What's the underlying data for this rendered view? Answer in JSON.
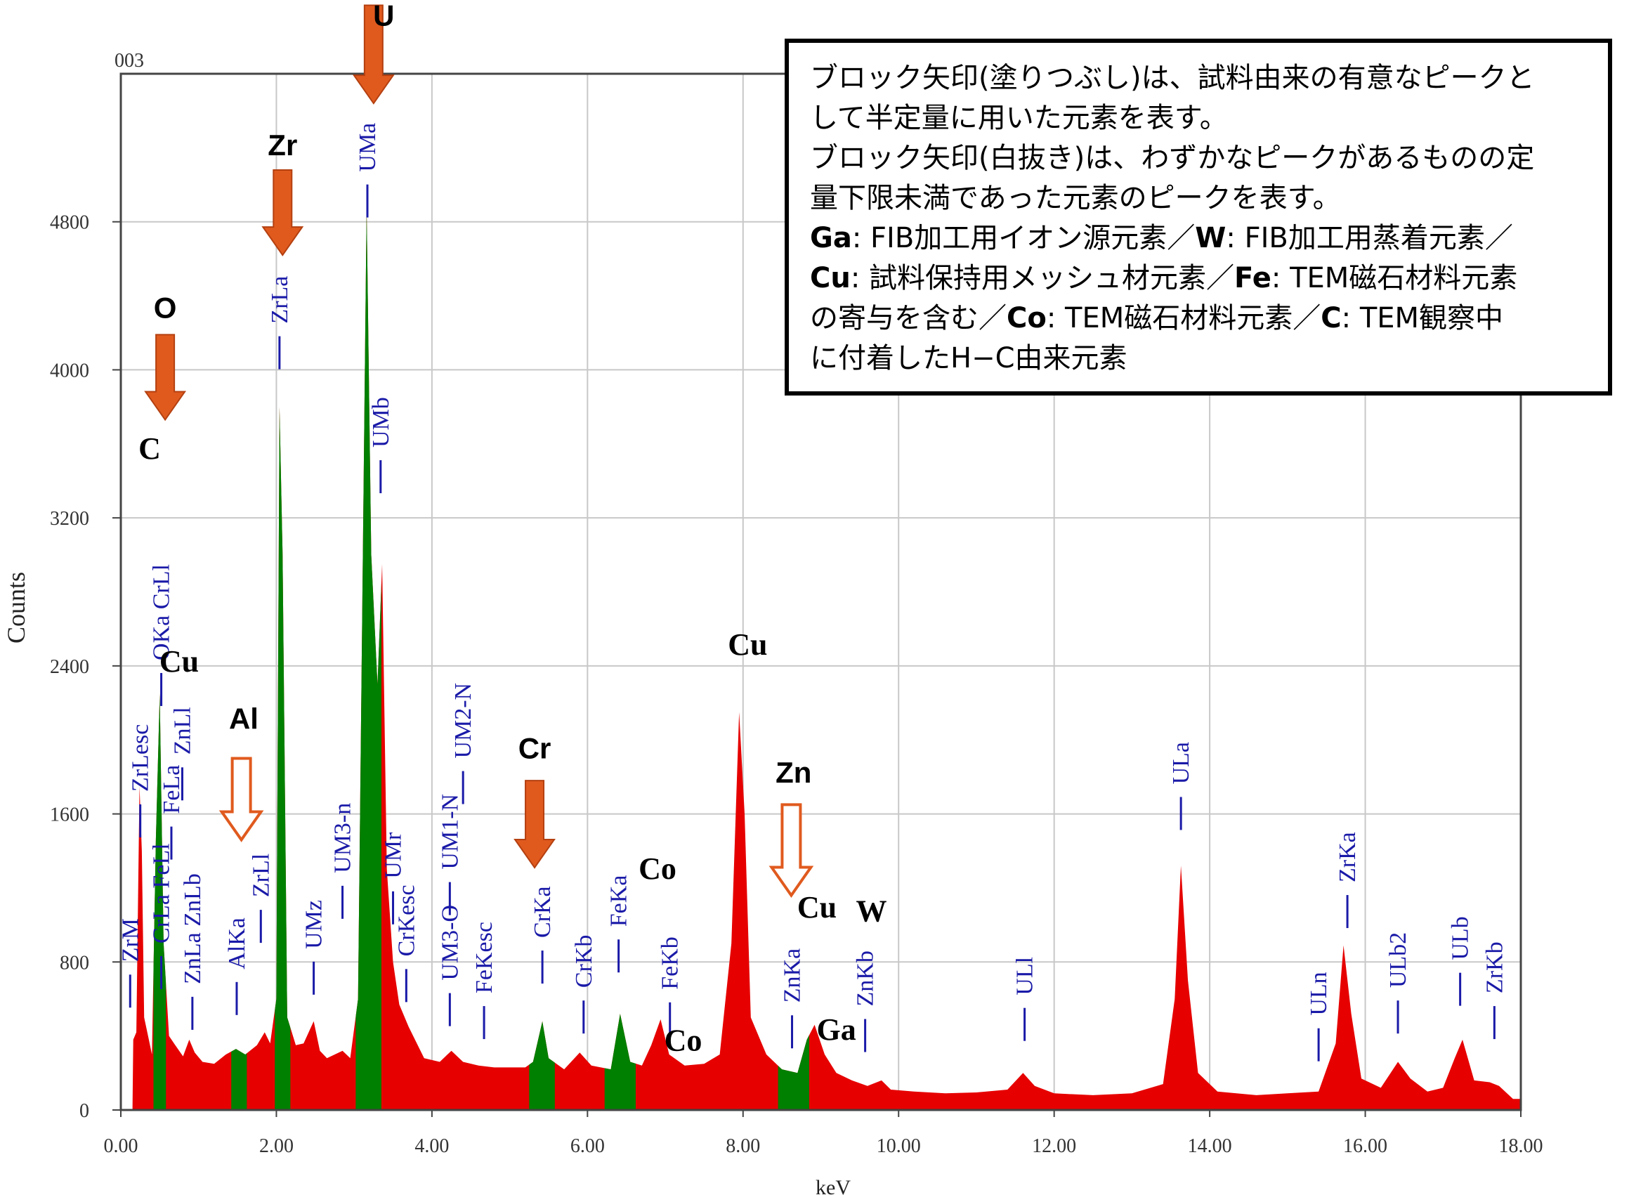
{
  "corner_label": "003",
  "chart_data": {
    "type": "area",
    "xlabel": "keV",
    "ylabel": "Counts",
    "xlim": [
      0,
      18
    ],
    "ylim": [
      0,
      5600
    ],
    "x_ticks": [
      "0.00",
      "2.00",
      "4.00",
      "6.00",
      "8.00",
      "10.00",
      "12.00",
      "14.00",
      "16.00",
      "18.00"
    ],
    "y_ticks": [
      "0",
      "800",
      "1600",
      "2400",
      "3200",
      "4000",
      "4800"
    ],
    "grid": true,
    "series": [
      {
        "color": "#e60000",
        "points": [
          [
            0.15,
            0
          ],
          [
            0.16,
            380
          ],
          [
            0.2,
            420
          ],
          [
            0.24,
            1750
          ],
          [
            0.27,
            1400
          ],
          [
            0.3,
            500
          ],
          [
            0.36,
            380
          ],
          [
            0.4,
            300
          ],
          [
            0.45,
            1450
          ],
          [
            0.5,
            2250
          ],
          [
            0.55,
            900
          ],
          [
            0.62,
            400
          ],
          [
            0.7,
            350
          ],
          [
            0.8,
            290
          ],
          [
            0.88,
            380
          ],
          [
            0.95,
            310
          ],
          [
            1.05,
            260
          ],
          [
            1.2,
            250
          ],
          [
            1.35,
            300
          ],
          [
            1.48,
            330
          ],
          [
            1.6,
            300
          ],
          [
            1.75,
            350
          ],
          [
            1.85,
            420
          ],
          [
            1.92,
            360
          ],
          [
            2.0,
            600
          ],
          [
            2.04,
            3800
          ],
          [
            2.08,
            3000
          ],
          [
            2.14,
            500
          ],
          [
            2.25,
            350
          ],
          [
            2.35,
            360
          ],
          [
            2.48,
            480
          ],
          [
            2.56,
            320
          ],
          [
            2.65,
            280
          ],
          [
            2.75,
            300
          ],
          [
            2.85,
            320
          ],
          [
            2.95,
            280
          ],
          [
            3.05,
            600
          ],
          [
            3.16,
            4880
          ],
          [
            3.22,
            3000
          ],
          [
            3.3,
            2300
          ],
          [
            3.36,
            2950
          ],
          [
            3.42,
            1300
          ],
          [
            3.5,
            800
          ],
          [
            3.58,
            570
          ],
          [
            3.7,
            450
          ],
          [
            3.9,
            280
          ],
          [
            4.1,
            260
          ],
          [
            4.25,
            320
          ],
          [
            4.4,
            260
          ],
          [
            4.6,
            240
          ],
          [
            4.8,
            230
          ],
          [
            5.0,
            230
          ],
          [
            5.2,
            230
          ],
          [
            5.3,
            260
          ],
          [
            5.42,
            480
          ],
          [
            5.5,
            280
          ],
          [
            5.7,
            220
          ],
          [
            5.9,
            310
          ],
          [
            6.05,
            240
          ],
          [
            6.3,
            220
          ],
          [
            6.42,
            520
          ],
          [
            6.55,
            260
          ],
          [
            6.7,
            240
          ],
          [
            6.82,
            350
          ],
          [
            6.94,
            490
          ],
          [
            7.05,
            300
          ],
          [
            7.25,
            240
          ],
          [
            7.5,
            250
          ],
          [
            7.7,
            300
          ],
          [
            7.85,
            900
          ],
          [
            7.95,
            2150
          ],
          [
            8.02,
            1600
          ],
          [
            8.1,
            500
          ],
          [
            8.3,
            300
          ],
          [
            8.5,
            220
          ],
          [
            8.7,
            200
          ],
          [
            8.82,
            380
          ],
          [
            8.92,
            460
          ],
          [
            9.05,
            300
          ],
          [
            9.2,
            200
          ],
          [
            9.4,
            160
          ],
          [
            9.6,
            130
          ],
          [
            9.78,
            160
          ],
          [
            9.9,
            110
          ],
          [
            10.2,
            100
          ],
          [
            10.6,
            90
          ],
          [
            11.0,
            95
          ],
          [
            11.4,
            110
          ],
          [
            11.6,
            200
          ],
          [
            11.75,
            130
          ],
          [
            12.0,
            90
          ],
          [
            12.5,
            80
          ],
          [
            13.0,
            90
          ],
          [
            13.4,
            140
          ],
          [
            13.55,
            600
          ],
          [
            13.63,
            1320
          ],
          [
            13.72,
            700
          ],
          [
            13.85,
            200
          ],
          [
            14.1,
            100
          ],
          [
            14.6,
            80
          ],
          [
            15.0,
            90
          ],
          [
            15.4,
            100
          ],
          [
            15.62,
            360
          ],
          [
            15.72,
            890
          ],
          [
            15.82,
            520
          ],
          [
            15.95,
            170
          ],
          [
            16.2,
            120
          ],
          [
            16.42,
            260
          ],
          [
            16.58,
            170
          ],
          [
            16.8,
            100
          ],
          [
            17.0,
            120
          ],
          [
            17.15,
            280
          ],
          [
            17.25,
            380
          ],
          [
            17.4,
            160
          ],
          [
            17.6,
            150
          ],
          [
            17.72,
            130
          ],
          [
            17.9,
            60
          ],
          [
            18.0,
            60
          ]
        ]
      },
      {
        "color": "#008000",
        "bands": [
          [
            0.42,
            0.58
          ],
          [
            1.42,
            1.62
          ],
          [
            1.98,
            2.18
          ],
          [
            3.02,
            3.35
          ],
          [
            5.25,
            5.58
          ],
          [
            6.22,
            6.62
          ],
          [
            8.45,
            8.85
          ]
        ]
      }
    ],
    "peak_labels": [
      {
        "text": "ZrM",
        "x": 0.12,
        "y": 800
      },
      {
        "text": "ZrLesc",
        "x": 0.25,
        "y": 1720
      },
      {
        "text": "OKa CrLl",
        "x": 0.52,
        "y": 2430
      },
      {
        "text": "CrLa FeLl",
        "x": 0.52,
        "y": 900
      },
      {
        "text": "FeLa",
        "x": 0.65,
        "y": 1600
      },
      {
        "text": "ZnLl",
        "x": 0.79,
        "y": 1920
      },
      {
        "text": "ZnLa ZnLb",
        "x": 0.92,
        "y": 680
      },
      {
        "text": "AlKa",
        "x": 1.49,
        "y": 760
      },
      {
        "text": "ZrLl",
        "x": 1.8,
        "y": 1150
      },
      {
        "text": "ZrLa",
        "x": 2.04,
        "y": 4250
      },
      {
        "text": "UMz",
        "x": 2.48,
        "y": 870
      },
      {
        "text": "UM3-n",
        "x": 2.85,
        "y": 1280
      },
      {
        "text": "UMa",
        "x": 3.17,
        "y": 5070
      },
      {
        "text": "UMb",
        "x": 3.34,
        "y": 3580
      },
      {
        "text": "UMr",
        "x": 3.5,
        "y": 1250
      },
      {
        "text": "CrKesc",
        "x": 3.67,
        "y": 830
      },
      {
        "text": "UM1-N",
        "x": 4.23,
        "y": 1300
      },
      {
        "text": "UM2-N",
        "x": 4.4,
        "y": 1900
      },
      {
        "text": "UM3-O",
        "x": 4.23,
        "y": 700
      },
      {
        "text": "FeKesc",
        "x": 4.67,
        "y": 630
      },
      {
        "text": "CrKa",
        "x": 5.42,
        "y": 930
      },
      {
        "text": "CrKb",
        "x": 5.95,
        "y": 660
      },
      {
        "text": "FeKa",
        "x": 6.4,
        "y": 990
      },
      {
        "text": "FeKb",
        "x": 7.06,
        "y": 650
      },
      {
        "text": "ZnKa",
        "x": 8.63,
        "y": 580
      },
      {
        "text": "ZnKb",
        "x": 9.57,
        "y": 560
      },
      {
        "text": "ULl",
        "x": 11.62,
        "y": 620
      },
      {
        "text": "ULa",
        "x": 13.63,
        "y": 1760
      },
      {
        "text": "ULn",
        "x": 15.4,
        "y": 510
      },
      {
        "text": "ZrKa",
        "x": 15.77,
        "y": 1230
      },
      {
        "text": "ULb2",
        "x": 16.42,
        "y": 660
      },
      {
        "text": "ULb",
        "x": 17.22,
        "y": 810
      },
      {
        "text": "ZrKb",
        "x": 17.66,
        "y": 630
      }
    ],
    "element_labels": [
      {
        "text": "U",
        "x": 3.38,
        "y": 5860,
        "family": "sans"
      },
      {
        "text": "Zr",
        "x": 2.08,
        "y": 5160,
        "family": "sans"
      },
      {
        "text": "O",
        "x": 0.57,
        "y": 4280,
        "family": "sans"
      },
      {
        "text": "C",
        "x": 0.37,
        "y": 3520,
        "family": "serif"
      },
      {
        "text": "Cu",
        "x": 0.75,
        "y": 2370,
        "family": "serif"
      },
      {
        "text": "Al",
        "x": 1.58,
        "y": 2060,
        "family": "sans"
      },
      {
        "text": "Cr",
        "x": 5.32,
        "y": 1900,
        "family": "sans"
      },
      {
        "text": "Cu",
        "x": 8.06,
        "y": 2460,
        "family": "serif"
      },
      {
        "text": "Zn",
        "x": 8.65,
        "y": 1770,
        "family": "sans"
      },
      {
        "text": "Co",
        "x": 6.9,
        "y": 1250,
        "family": "serif"
      },
      {
        "text": "Cu",
        "x": 8.95,
        "y": 1040,
        "family": "serif"
      },
      {
        "text": "W",
        "x": 9.65,
        "y": 1020,
        "family": "serif"
      },
      {
        "text": "Co",
        "x": 7.23,
        "y": 320,
        "family": "serif"
      },
      {
        "text": "Ga",
        "x": 9.2,
        "y": 380,
        "family": "serif"
      }
    ],
    "arrows": [
      {
        "x": 3.25,
        "y_top": 5970,
        "y_tip": 5440,
        "style": "filled"
      },
      {
        "x": 2.08,
        "y_top": 5080,
        "y_tip": 4620,
        "style": "filled"
      },
      {
        "x": 0.57,
        "y_top": 4190,
        "y_tip": 3730,
        "style": "filled"
      },
      {
        "x": 1.55,
        "y_top": 1900,
        "y_tip": 1460,
        "style": "outline"
      },
      {
        "x": 5.32,
        "y_top": 1780,
        "y_tip": 1310,
        "style": "filled"
      },
      {
        "x": 8.62,
        "y_top": 1650,
        "y_tip": 1160,
        "style": "outline"
      }
    ],
    "arrow_color": "#e05a1e",
    "label_color": "#1a1aa8"
  },
  "note": {
    "lines": [
      [
        {
          "t": "ブロック矢印(塗りつぶし)は、試料由来の有意なピークと"
        }
      ],
      [
        {
          "t": "して半定量に用いた元素を表す。"
        }
      ],
      [
        {
          "t": "ブロック矢印(白抜き)は、わずかなピークがあるものの定"
        }
      ],
      [
        {
          "t": "量下限未満であった元素のピークを表す。"
        }
      ],
      [
        {
          "t": "Ga",
          "b": true
        },
        {
          "t": ": FIB加工用イオン源元素／"
        },
        {
          "t": "W",
          "b": true
        },
        {
          "t": ": FIB加工用蒸着元素／"
        }
      ],
      [
        {
          "t": "Cu",
          "b": true
        },
        {
          "t": ": 試料保持用メッシュ材元素／"
        },
        {
          "t": "Fe",
          "b": true
        },
        {
          "t": ": TEM磁石材料元素"
        }
      ],
      [
        {
          "t": "の寄与を含む／"
        },
        {
          "t": "Co",
          "b": true
        },
        {
          "t": ": TEM磁石材料元素／"
        },
        {
          "t": "C",
          "b": true
        },
        {
          "t": ": TEM観察中"
        }
      ],
      [
        {
          "t": "に付着したH−C由来元素"
        }
      ]
    ]
  }
}
